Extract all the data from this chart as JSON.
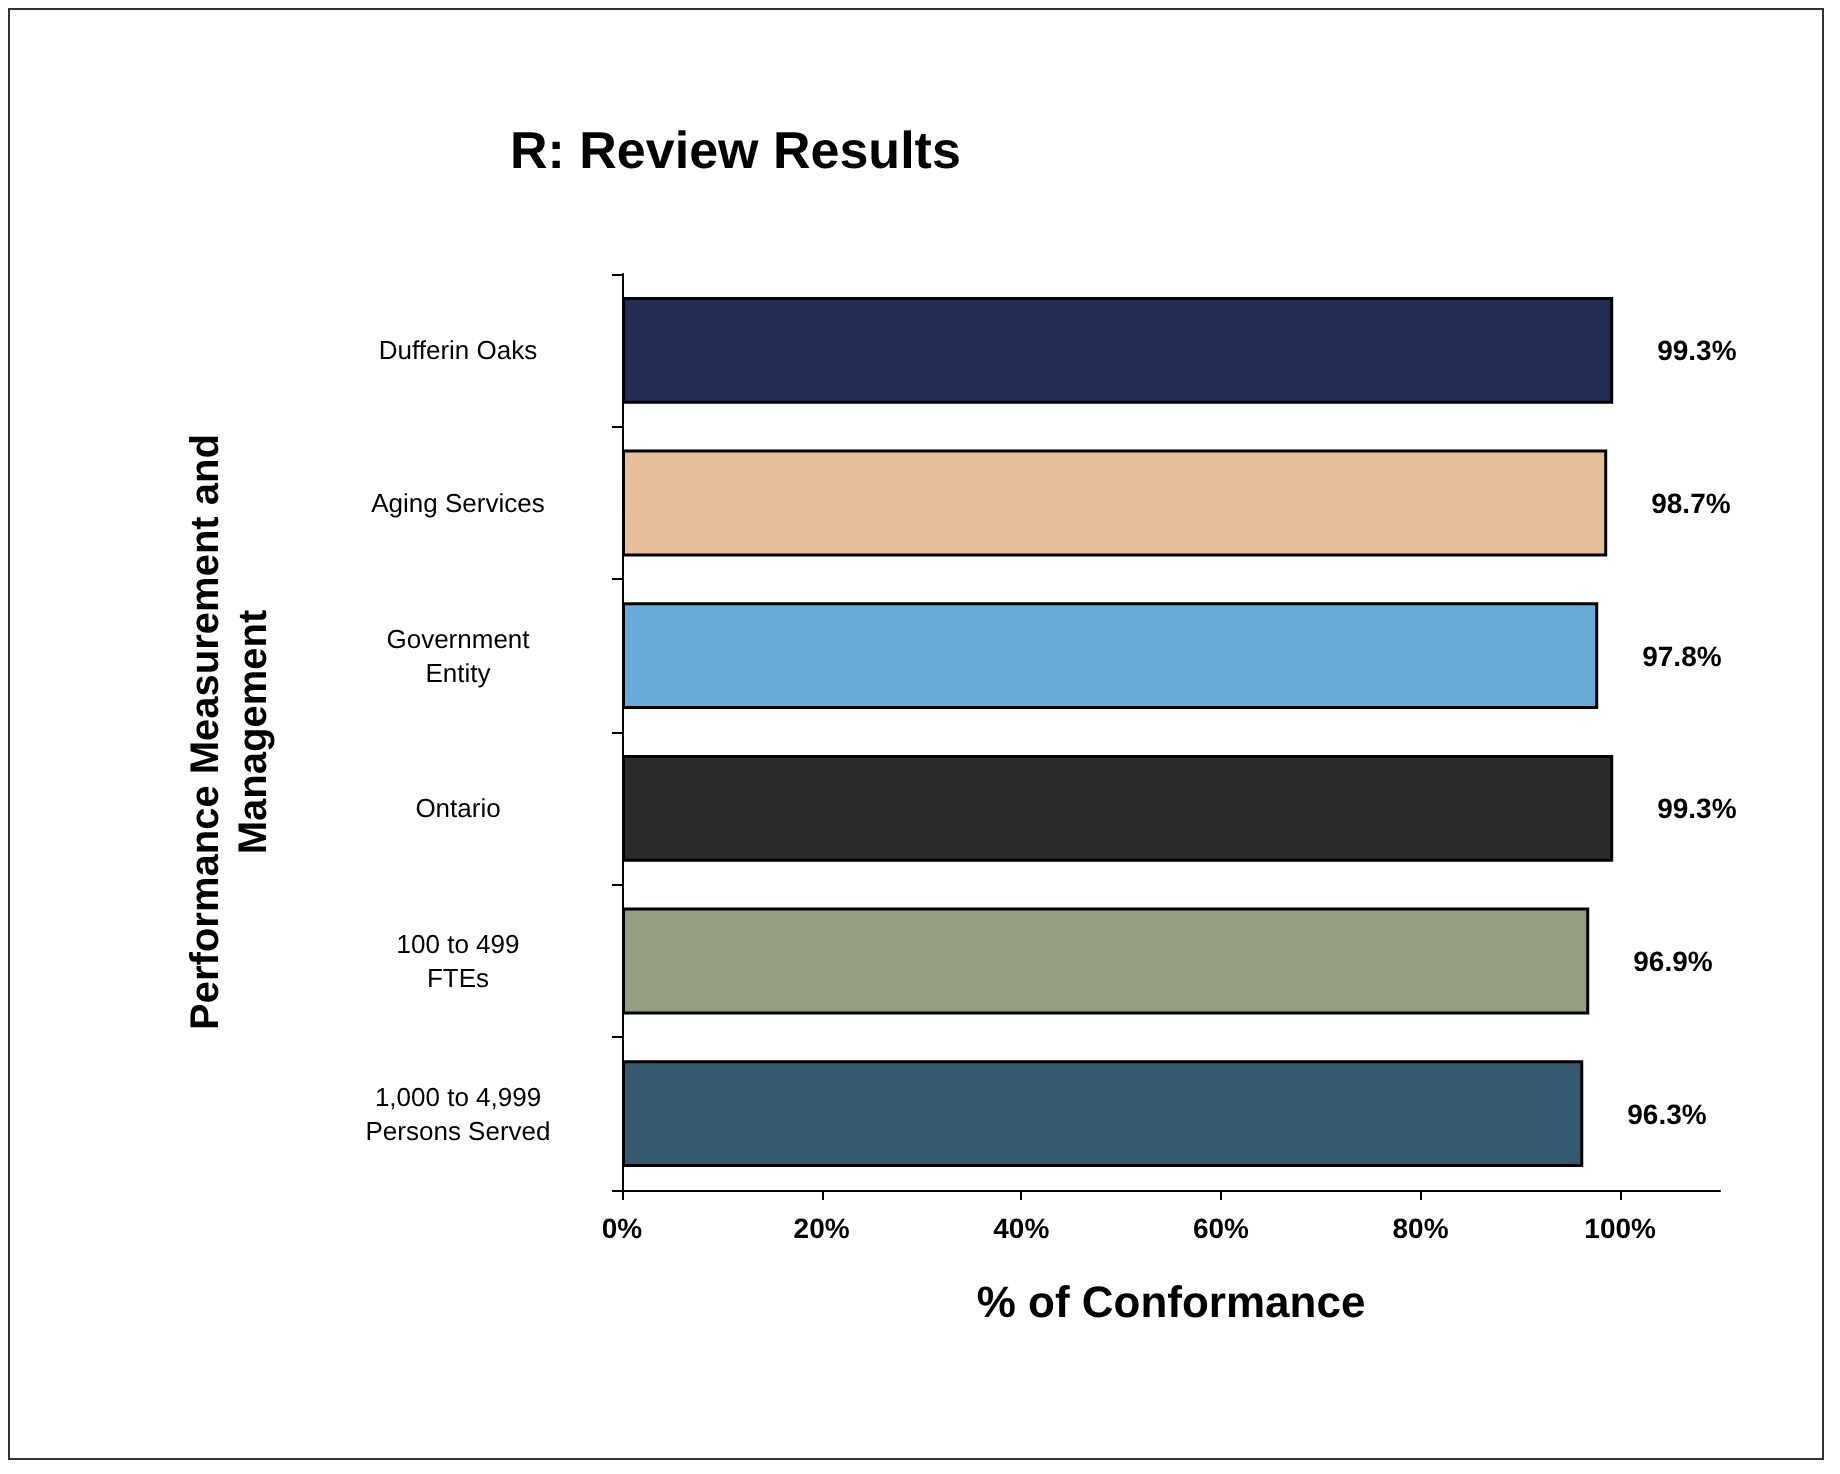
{
  "chart_data": {
    "type": "bar",
    "orientation": "horizontal",
    "title": "R: Review Results",
    "xlabel": "% of Conformance",
    "ylabel": "Performance Measurement and\nManagement",
    "categories": [
      "Dufferin Oaks",
      "Aging Services",
      "Government\nEntity",
      "Ontario",
      "100 to 499\nFTEs",
      "1,000 to 4,999\nPersons Served"
    ],
    "values": [
      99.3,
      98.7,
      97.8,
      99.3,
      96.9,
      96.3
    ],
    "colors": [
      "#232c55",
      "#e6bf98",
      "#67acd6",
      "#2b2b2b",
      "#939d80",
      "#355a70"
    ],
    "value_labels": [
      "99.3%",
      "98.7%",
      "97.8%",
      "99.3%",
      "96.9%",
      "96.3%"
    ],
    "xlim": [
      0,
      110
    ],
    "xticks": [
      {
        "value": 0,
        "label": "0%"
      },
      {
        "value": 20,
        "label": "20%"
      },
      {
        "value": 40,
        "label": "40%"
      },
      {
        "value": 60,
        "label": "60%"
      },
      {
        "value": 80,
        "label": "80%"
      },
      {
        "value": 100,
        "label": "100%"
      }
    ],
    "grid": false
  }
}
